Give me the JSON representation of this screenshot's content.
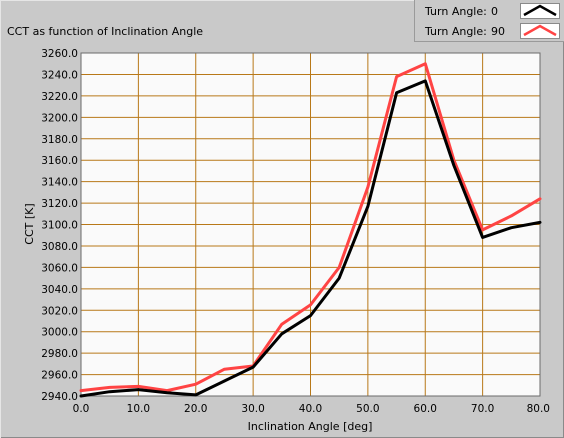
{
  "chart_title": "CCT as function of Inclination Angle",
  "legend": [
    {
      "label": "Turn Angle:",
      "value": "0",
      "color": "#000000"
    },
    {
      "label": "Turn Angle:",
      "value": "90",
      "color": "#ff4444"
    }
  ],
  "colors": {
    "plot_background": "#fafafa",
    "grid": "#b87818"
  },
  "chart_data": {
    "type": "line",
    "title": "CCT as function of Inclination Angle",
    "xlabel": "Inclination Angle [deg]",
    "ylabel": "CCT [K]",
    "xlim": [
      0,
      80
    ],
    "ylim": [
      2940,
      3260
    ],
    "grid": true,
    "legend_position": "top-right",
    "x_ticks": [
      "0.0",
      "10.0",
      "20.0",
      "30.0",
      "40.0",
      "50.0",
      "60.0",
      "70.0",
      "80.0"
    ],
    "y_ticks": [
      "2940.0",
      "2960.0",
      "2980.0",
      "3000.0",
      "3020.0",
      "3040.0",
      "3060.0",
      "3080.0",
      "3100.0",
      "3120.0",
      "3140.0",
      "3160.0",
      "3180.0",
      "3200.0",
      "3220.0",
      "3240.0",
      "3260.0"
    ],
    "x": [
      0,
      5,
      10,
      15,
      20,
      25,
      30,
      35,
      40,
      45,
      50,
      55,
      60,
      65,
      70,
      75,
      80
    ],
    "series": [
      {
        "name": "Turn Angle: 0",
        "color": "#000000",
        "values": [
          2940,
          2944,
          2946,
          2943,
          2941,
          2954,
          2967,
          2998,
          3015,
          3050,
          3117,
          3223,
          3234,
          3155,
          3088,
          3097,
          3102
        ]
      },
      {
        "name": "Turn Angle: 90",
        "color": "#ff4444",
        "values": [
          2945,
          2948,
          2949,
          2945,
          2951,
          2965,
          2968,
          3007,
          3025,
          3060,
          3135,
          3238,
          3250,
          3160,
          3095,
          3108,
          3124
        ]
      }
    ]
  }
}
